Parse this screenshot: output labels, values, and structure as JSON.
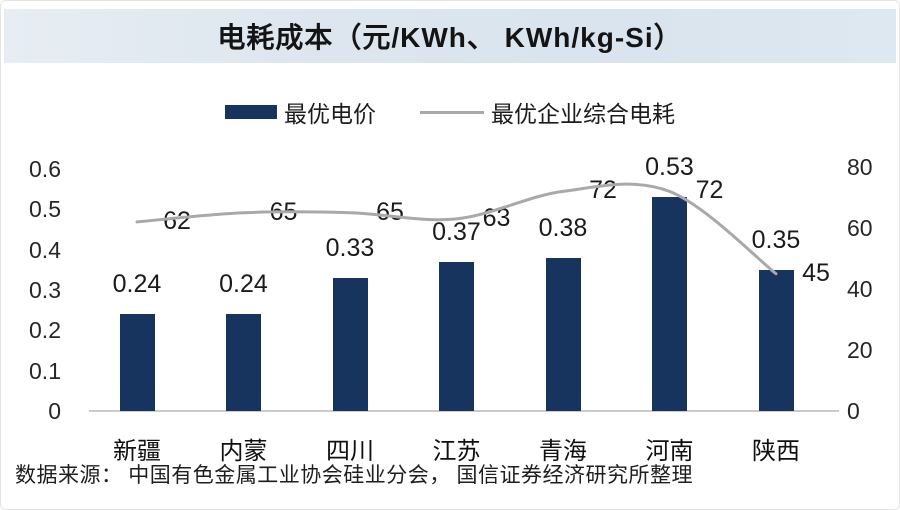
{
  "title": "电耗成本（元/KWh、 KWh/kg-Si）",
  "legend": {
    "bar": "最优电价",
    "line": "最优企业综合电耗"
  },
  "source": "数据来源： 中国有色金属工业协会硅业分会， 国信证券经济研究所整理",
  "colors": {
    "bar": "#17345f",
    "line": "#a9a9a9",
    "title_band": "#dbe5ee",
    "axis_line": "#cbcbcb",
    "text": "#1b1b1b"
  },
  "chart_data": {
    "type": "bar+line combo",
    "title": "电耗成本（元/KWh、 KWh/kg-Si）",
    "categories": [
      "新疆",
      "内蒙",
      "四川",
      "江苏",
      "青海",
      "河南",
      "陕西"
    ],
    "series": [
      {
        "name": "最优电价",
        "type": "bar",
        "axis": "left",
        "unit": "元/KWh",
        "color": "#17345f",
        "values": [
          0.24,
          0.24,
          0.33,
          0.37,
          0.38,
          0.53,
          0.35
        ]
      },
      {
        "name": "最优企业综合电耗",
        "type": "line",
        "axis": "right",
        "unit": "KWh/kg-Si",
        "color": "#a9a9a9",
        "smooth": true,
        "values": [
          62,
          65,
          65,
          63,
          72,
          72,
          45
        ]
      }
    ],
    "bar_value_labels": [
      "0.24",
      "0.24",
      "0.33",
      "0.37",
      "0.38",
      "0.53",
      "0.35"
    ],
    "line_value_labels": [
      "62",
      "65",
      "65",
      "63",
      "72",
      "72",
      "45"
    ],
    "left_axis": {
      "range": [
        0,
        0.6
      ],
      "tick_values": [
        0,
        0.1,
        0.2,
        0.3,
        0.4,
        0.5,
        0.6
      ],
      "tick_labels": [
        "0",
        "0.1",
        "0.2",
        "0.3",
        "0.4",
        "0.5",
        "0.6"
      ]
    },
    "right_axis": {
      "range": [
        0,
        80
      ],
      "tick_values": [
        0,
        20,
        40,
        60,
        80
      ],
      "tick_labels": [
        "0",
        "20",
        "40",
        "60",
        "80"
      ]
    },
    "legend_position": "top",
    "grid": false
  }
}
